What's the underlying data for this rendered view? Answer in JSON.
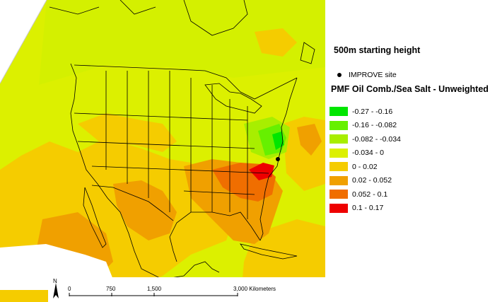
{
  "legend": {
    "title": "500m starting height",
    "site_label": "IMPROVE site",
    "layer_title": "PMF Oil Comb./Sea Salt - Unweighted",
    "classes": [
      {
        "label": "-0.27 - -0.16",
        "color": "#00e600"
      },
      {
        "label": "-0.16 - -0.082",
        "color": "#66f000"
      },
      {
        "label": "-0.082 - -0.034",
        "color": "#a8ee00"
      },
      {
        "label": "-0.034 - 0",
        "color": "#dcf000"
      },
      {
        "label": "0 - 0.02",
        "color": "#f5cc00"
      },
      {
        "label": "0.02 - 0.052",
        "color": "#f0a000"
      },
      {
        "label": "0.052 - 0.1",
        "color": "#f06e00"
      },
      {
        "label": "0.1 - 0.17",
        "color": "#ee0000"
      }
    ]
  },
  "scale": {
    "north": "N",
    "ticks": [
      "0",
      "750",
      "1,500",
      "3,000 Kilometers"
    ]
  },
  "colors": {
    "land_default": "#dcf000",
    "ocean_edge": "#ffffff",
    "outline": "#000000"
  }
}
